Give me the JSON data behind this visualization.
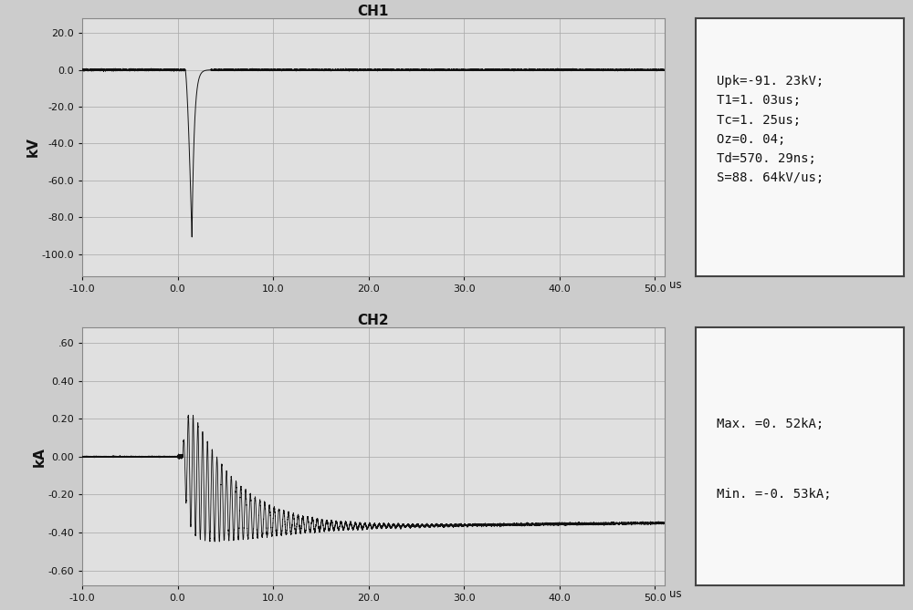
{
  "background_color": "#cccccc",
  "plot_bg_color": "#e0e0e0",
  "ch1_title": "CH1",
  "ch2_title": "CH2",
  "ch1_ylabel": "kV",
  "ch2_ylabel": "kA",
  "xlabel": "us",
  "ch1_ylim": [
    -112,
    28
  ],
  "ch2_ylim": [
    -0.68,
    0.68
  ],
  "xlim": [
    -10,
    51
  ],
  "ch1_yticks": [
    -100.0,
    -80.0,
    -60.0,
    -40.0,
    -20.0,
    0.0,
    20.0
  ],
  "ch2_yticks": [
    -0.6,
    -0.4,
    -0.2,
    0.0,
    0.2,
    0.4,
    0.6
  ],
  "xticks": [
    -10.0,
    0.0,
    10.0,
    20.0,
    30.0,
    40.0,
    50.0
  ],
  "xtick_labels": [
    "-10.0",
    "0.0",
    "10.0",
    "20.0",
    "30.0",
    "40.0",
    "50.0"
  ],
  "ch1_ytick_labels": [
    "-100.0",
    "-80.0",
    "-60.0",
    "-40.0",
    "-20.0",
    "0.0",
    "20.0"
  ],
  "ch2_ytick_labels": [
    "-0.60",
    "-0.40",
    "-0.20",
    "0.00",
    "0.20",
    "0.40",
    ".60"
  ],
  "ch1_info": "Upk=-91. 23kV;\nT1=1. 03us;\nTc=1. 25us;\nOz=0. 04;\nTd=570. 29ns;\nS=88. 64kV/us;",
  "ch2_info_line1": "Max. =0. 52kA;",
  "ch2_info_line2": "Min. =-0. 53kA;",
  "line_color": "#111111",
  "grid_color": "#aaaaaa",
  "text_color": "#111111",
  "box_bg": "#f8f8f8",
  "box_edge": "#444444",
  "title_fontsize": 11,
  "tick_fontsize": 8,
  "info_fontsize": 10
}
